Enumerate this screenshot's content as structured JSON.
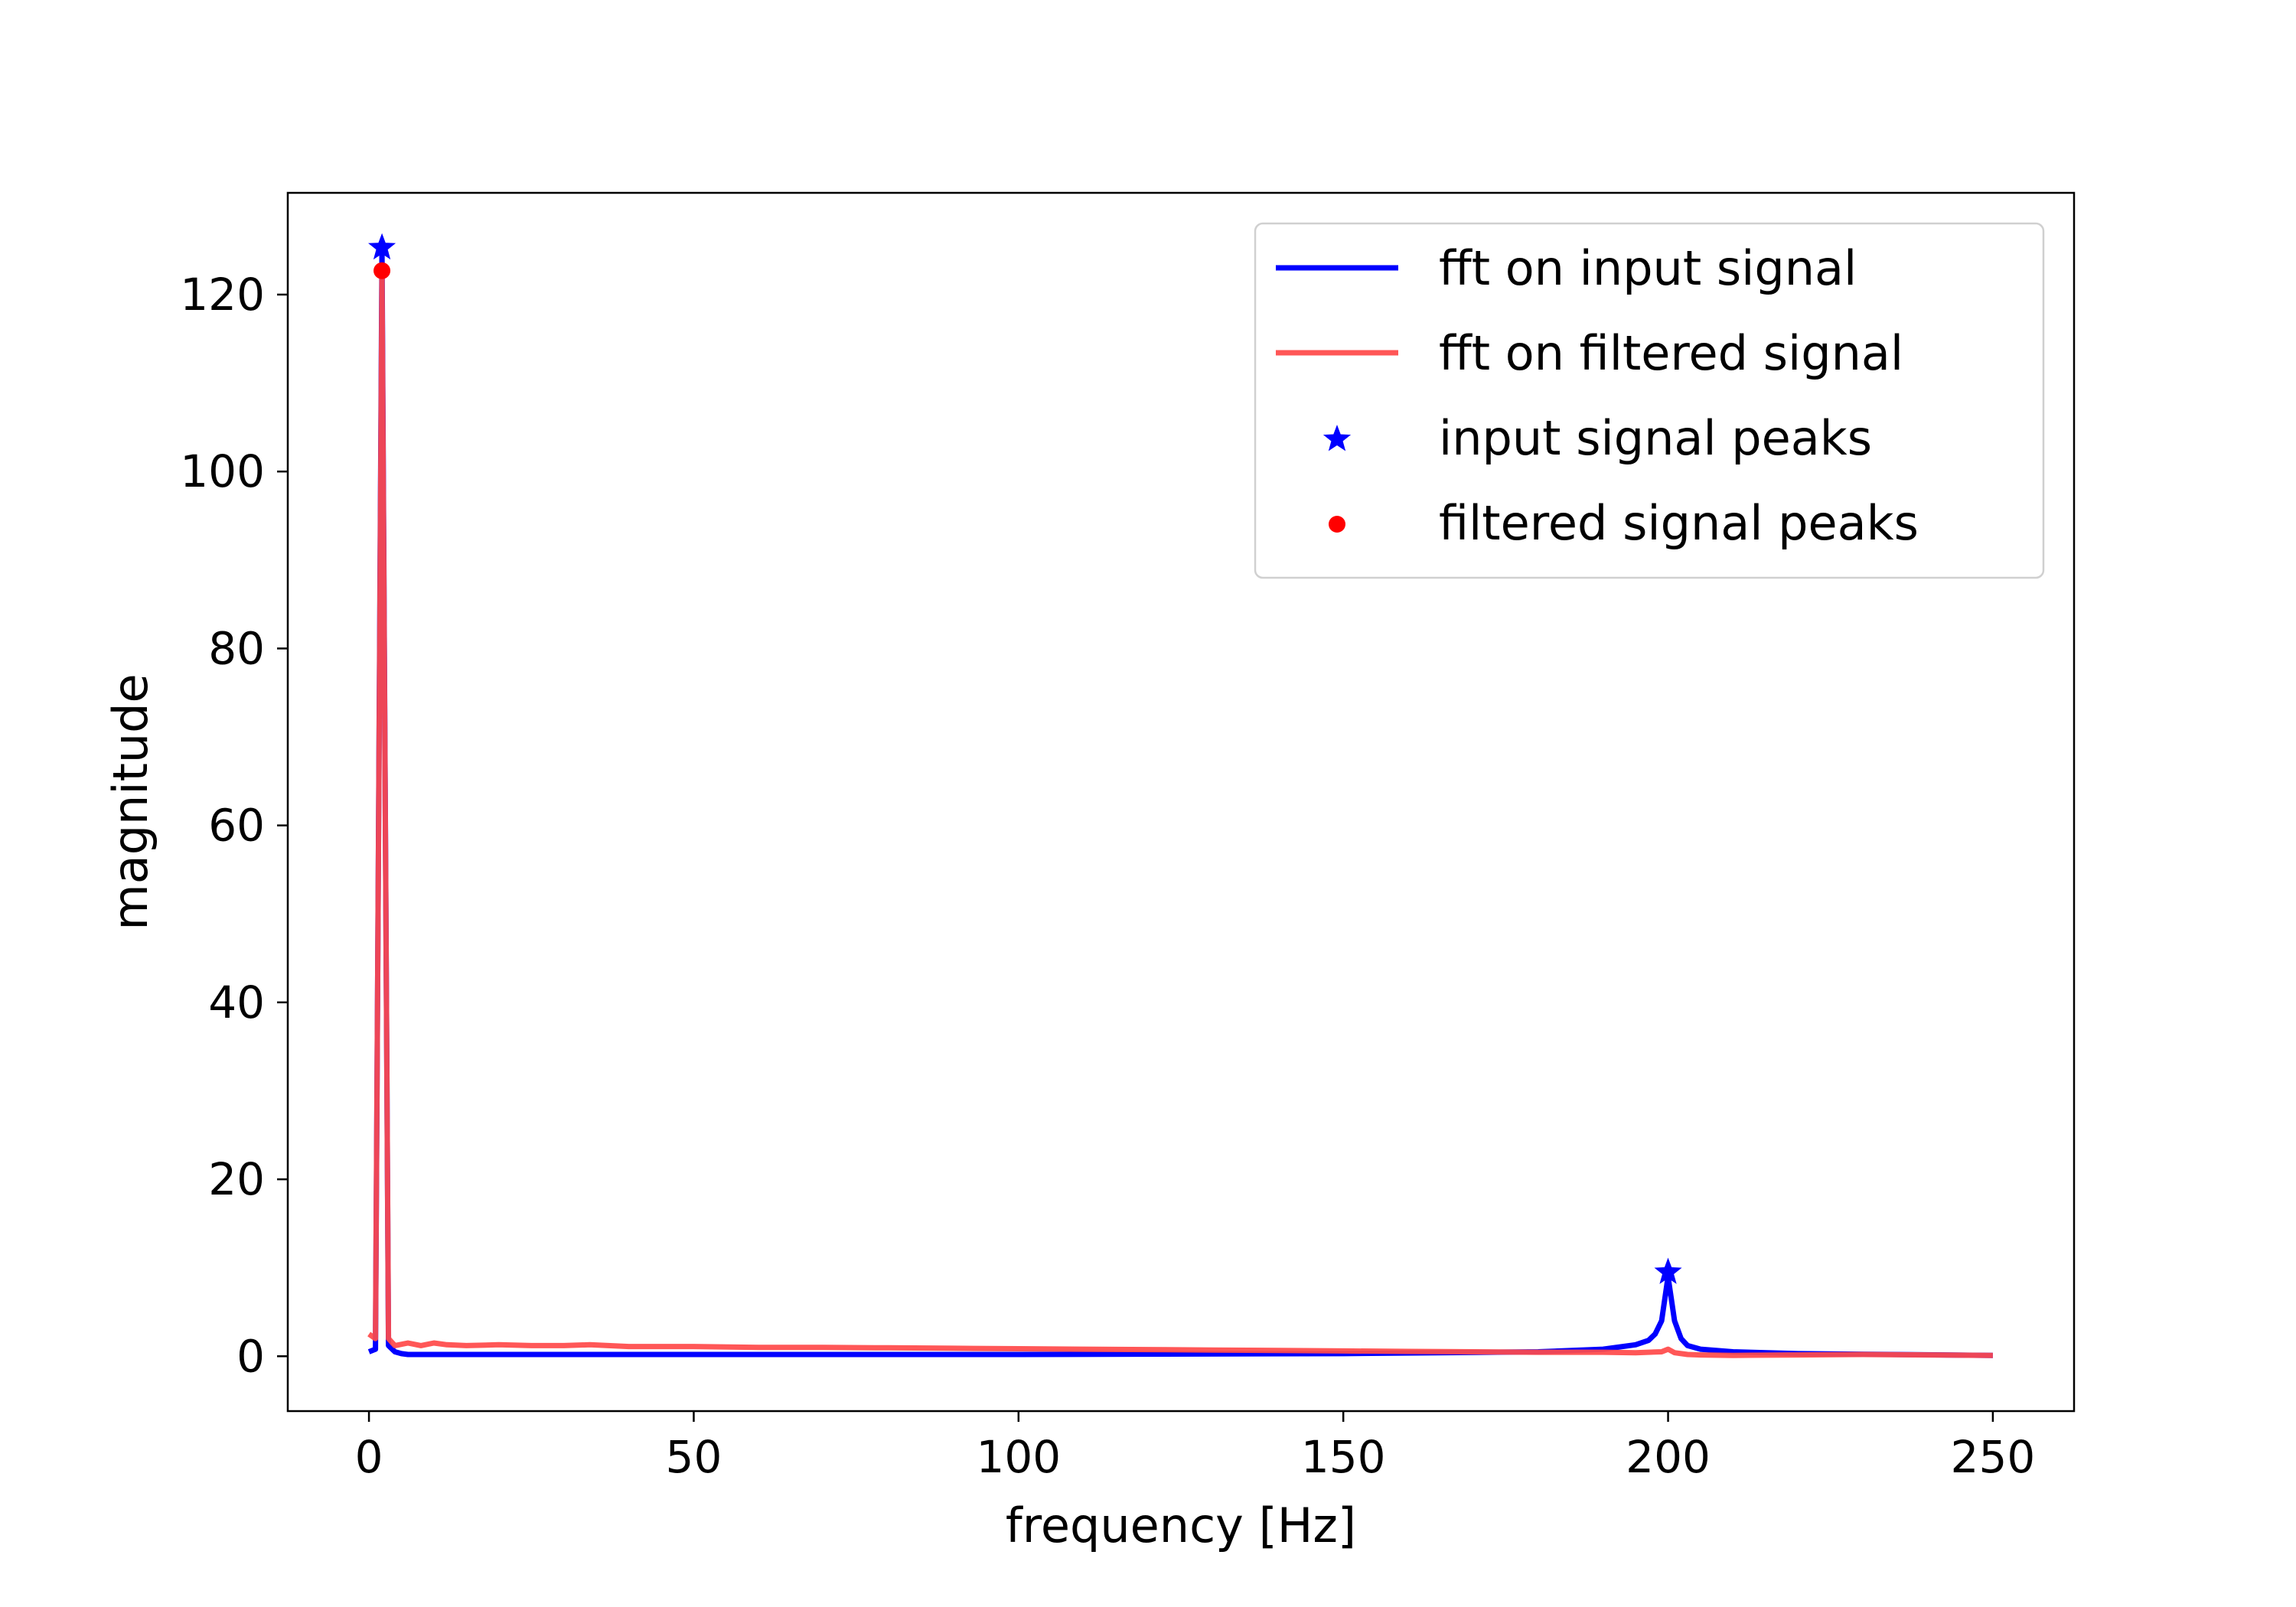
{
  "chart_data": {
    "type": "line",
    "title": "",
    "xlabel": "frequency [Hz]",
    "ylabel": "magnitude",
    "xlim": [
      -12.5,
      262.5
    ],
    "ylim": [
      -6.2,
      131.5
    ],
    "xticks": [
      0,
      50,
      100,
      150,
      200,
      250
    ],
    "yticks": [
      0,
      20,
      40,
      60,
      80,
      100,
      120
    ],
    "grid": false,
    "legend_position": "top-right",
    "series": [
      {
        "name": "fft on input signal",
        "kind": "line",
        "color": "#0000ff",
        "x": [
          0,
          1,
          2,
          3,
          4,
          5,
          6,
          10,
          20,
          50,
          100,
          150,
          180,
          190,
          195,
          197,
          198,
          199,
          200,
          201,
          202,
          203,
          205,
          210,
          220,
          250
        ],
        "y": [
          0.5,
          0.8,
          125,
          1.2,
          0.5,
          0.3,
          0.2,
          0.2,
          0.2,
          0.2,
          0.2,
          0.3,
          0.5,
          0.8,
          1.3,
          1.8,
          2.5,
          4.0,
          9.0,
          4.0,
          2.0,
          1.2,
          0.8,
          0.5,
          0.3,
          0.1
        ]
      },
      {
        "name": "fft on filtered signal",
        "kind": "line",
        "color": "#ff4a4a",
        "x": [
          0,
          1,
          2,
          3,
          4,
          6,
          8,
          10,
          12,
          15,
          20,
          25,
          30,
          34,
          40,
          50,
          60,
          70,
          80,
          90,
          100,
          110,
          120,
          130,
          140,
          150,
          160,
          170,
          180,
          190,
          195,
          199,
          200,
          201,
          203,
          205,
          210,
          220,
          230,
          240,
          250
        ],
        "y": [
          2.5,
          2.0,
          122.5,
          2.0,
          1.2,
          1.5,
          1.2,
          1.5,
          1.3,
          1.2,
          1.3,
          1.2,
          1.2,
          1.3,
          1.1,
          1.1,
          1.0,
          1.0,
          0.95,
          0.9,
          0.85,
          0.8,
          0.75,
          0.7,
          0.65,
          0.6,
          0.55,
          0.5,
          0.45,
          0.45,
          0.4,
          0.5,
          0.8,
          0.4,
          0.2,
          0.15,
          0.1,
          0.15,
          0.2,
          0.15,
          0.1
        ]
      }
    ],
    "peaks": [
      {
        "name": "input signal peaks",
        "marker": "star",
        "color": "#0000ff",
        "x": [
          2,
          200
        ],
        "y": [
          125.3,
          9.5
        ]
      },
      {
        "name": "filtered signal peaks",
        "marker": "circle",
        "color": "#ff0000",
        "x": [
          2
        ],
        "y": [
          122.7
        ]
      }
    ]
  }
}
